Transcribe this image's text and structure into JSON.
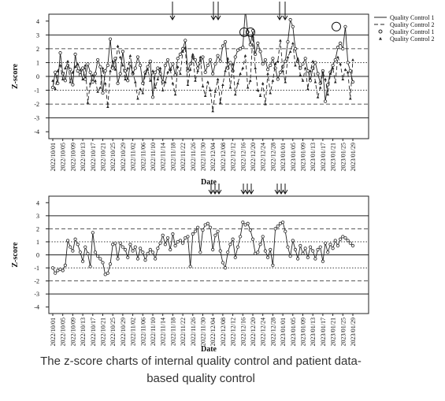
{
  "chart_data": [
    {
      "type": "line",
      "xlabel": "Date",
      "ylabel": "Z-score",
      "categories": [
        "2022/10/01",
        null,
        null,
        null,
        "2022/10/05",
        null,
        null,
        null,
        "2022/10/09",
        null,
        null,
        null,
        "2022/10/13",
        null,
        null,
        null,
        "2022/10/17",
        null,
        null,
        null,
        "2022/10/21",
        null,
        null,
        null,
        "2022/10/25",
        null,
        null,
        null,
        "2022/10/29",
        null,
        null,
        null,
        "2022/11/02",
        null,
        null,
        null,
        "2022/11/06",
        null,
        null,
        null,
        "2022/11/10",
        null,
        null,
        null,
        "2022/11/14",
        null,
        null,
        null,
        "2022/11/18",
        null,
        null,
        null,
        "2022/11/22",
        null,
        null,
        null,
        "2022/11/26",
        null,
        null,
        null,
        "2022/11/30",
        null,
        null,
        null,
        "2022/12/04",
        null,
        null,
        null,
        "2022/12/08",
        null,
        null,
        null,
        "2022/12/12",
        null,
        null,
        null,
        "2022/12/16",
        null,
        null,
        null,
        "2022/12/20",
        null,
        null,
        null,
        "2022/12/24",
        null,
        null,
        null,
        "2022/12/28",
        null,
        null,
        null,
        "2023/01/01",
        null,
        null,
        null,
        "2023/01/05",
        null,
        null,
        null,
        "2023/01/09",
        null,
        null,
        null,
        "2023/01/13",
        null,
        null,
        null,
        "2023/01/17",
        null,
        null,
        null,
        "2023/01/21",
        null,
        null,
        null,
        "2023/01/25",
        null,
        null,
        null,
        "2023/01/29"
      ],
      "series": [
        {
          "name": "Quality Control 1",
          "color": "#222222",
          "line_style": "solid",
          "marker": "circle",
          "values": [
            -0.8,
            0.3,
            -0.5,
            1.7,
            0.2,
            -0.3,
            0.8,
            0.5,
            -0.6,
            1.6,
            0.4,
            0.1,
            0.6,
            -0.2,
            0.9,
            0.3,
            -0.4,
            0.2,
            1.2,
            0.7,
            -1.2,
            0.4,
            0.8,
            2.7,
            0.6,
            1.3,
            -0.5,
            0.2,
            1.8,
            0.4,
            -0.3,
            0.9,
            0.2,
            0.6,
            1.4,
            0.8,
            -0.5,
            0.3,
            0.7,
            1.1,
            -1.5,
            0.3,
            0.6,
            0.2,
            -0.4,
            0.8,
            1.2,
            0.5,
            0.9,
            0.1,
            1.3,
            1.6,
            2.0,
            2.6,
            0.4,
            0.9,
            1.4,
            1.2,
            0.6,
            1.0,
            1.4,
            0.3,
            0.8,
            1.2,
            0.2,
            0.9,
            1.5,
            1.1,
            2.2,
            2.5,
            0.6,
            1.0,
            0.4,
            1.4,
            1.9,
            2.0,
            2.1,
            4.8,
            3.2,
            2.3,
            3.3,
            1.6,
            2.4,
            1.8,
            0.9,
            1.2,
            0.5,
            0.8,
            1.3,
            0.6,
            -0.2,
            0.3,
            0.7,
            1.1,
            2.5,
            4.1,
            3.6,
            2.0,
            1.1,
            0.6,
            0.9,
            1.3,
            0.4,
            -0.3,
            0.6,
            1.0,
            0.2,
            -0.5,
            0.4,
            -1.8,
            -0.6,
            0.3,
            0.8,
            1.2,
            2.1,
            2.4,
            2.0,
            3.6,
            1.0,
            0.4,
            -0.4
          ]
        },
        {
          "name": "Quality Control 2",
          "color": "#222222",
          "line_style": "dashed",
          "marker": "triangle",
          "values": [
            -0.3,
            -0.9,
            0.4,
            0.8,
            -0.2,
            0.6,
            1.1,
            -0.4,
            0.3,
            0.7,
            0.9,
            0.5,
            -0.2,
            0.8,
            -1.9,
            -0.5,
            0.1,
            -0.3,
            -1.1,
            -0.8,
            0.6,
            -0.5,
            -2.2,
            0.4,
            1.1,
            0.5,
            2.2,
            1.4,
            0.8,
            -0.2,
            0.6,
            1.5,
            0.3,
            -0.4,
            -1.6,
            -0.9,
            -1.2,
            0.2,
            0.5,
            -0.3,
            0.4,
            -0.8,
            -0.2,
            0.6,
            -1.0,
            -0.4,
            0.3,
            0.5,
            -0.5,
            -1.3,
            0.7,
            0.2,
            1.8,
            2.1,
            -0.6,
            0.5,
            1.6,
            -0.3,
            0.4,
            1.4,
            -0.7,
            -1.4,
            -0.4,
            -1.0,
            -2.5,
            -1.1,
            -0.2,
            -1.9,
            -0.6,
            0.4,
            1.3,
            -0.8,
            0.9,
            -1.3,
            -0.5,
            0.2,
            0.6,
            1.5,
            -0.8,
            -0.3,
            2.9,
            0.6,
            -1.0,
            -1.4,
            -0.5,
            -2.0,
            0.2,
            -1.2,
            -0.3,
            0.9,
            1.1,
            2.6,
            0.4,
            -0.4,
            1.4,
            1.8,
            2.4,
            0.8,
            1.3,
            0.1,
            -0.3,
            0.6,
            -0.9,
            0.4,
            1.1,
            -0.4,
            -1.5,
            -0.8,
            0.3,
            -0.2,
            -1.3,
            0.2,
            0.6,
            -0.4,
            1.4,
            0.9,
            -0.2,
            0.5,
            0.3,
            -1.6,
            1.2
          ]
        }
      ],
      "ylim": [
        -4.5,
        4.5
      ],
      "yticks": [
        -4,
        -3,
        -2,
        -1,
        0,
        1,
        2,
        3,
        4
      ],
      "ref_lines": {
        "solid": [
          -3,
          0,
          3
        ],
        "dashed": [
          -2,
          2
        ],
        "dotted": [
          -1,
          1
        ]
      },
      "legend": "outside-right"
    },
    {
      "type": "line",
      "xlabel": "Date",
      "ylabel": "Z-score",
      "categories": [
        "2022/10/01",
        null,
        null,
        null,
        "2022/10/05",
        null,
        null,
        null,
        "2022/10/09",
        null,
        null,
        null,
        "2022/10/13",
        null,
        null,
        null,
        "2022/10/17",
        null,
        null,
        null,
        "2022/10/21",
        null,
        null,
        null,
        "2022/10/25",
        null,
        null,
        null,
        "2022/10/29",
        null,
        null,
        null,
        "2022/11/02",
        null,
        null,
        null,
        "2022/11/06",
        null,
        null,
        null,
        "2022/11/10",
        null,
        null,
        null,
        "2022/11/14",
        null,
        null,
        null,
        "2022/11/18",
        null,
        null,
        null,
        "2022/11/22",
        null,
        null,
        null,
        "2022/11/26",
        null,
        null,
        null,
        "2022/11/30",
        null,
        null,
        null,
        "2022/12/04",
        null,
        null,
        null,
        "2022/12/08",
        null,
        null,
        null,
        "2022/12/12",
        null,
        null,
        null,
        "2022/12/16",
        null,
        null,
        null,
        "2022/12/20",
        null,
        null,
        null,
        "2022/12/24",
        null,
        null,
        null,
        "2022/12/28",
        null,
        null,
        null,
        "2023/01/01",
        null,
        null,
        null,
        "2023/01/05",
        null,
        null,
        null,
        "2023/01/09",
        null,
        null,
        null,
        "2023/01/13",
        null,
        null,
        null,
        "2023/01/17",
        null,
        null,
        null,
        "2023/01/21",
        null,
        null,
        null,
        "2023/01/25",
        null,
        null,
        null,
        "2023/01/29"
      ],
      "series": [
        {
          "color": "#222222",
          "line_style": "solid",
          "marker": "circle",
          "values": [
            -1.0,
            -1.4,
            -1.2,
            -1.1,
            -1.2,
            -0.8,
            1.1,
            0.6,
            0.3,
            1.2,
            0.8,
            0.2,
            -0.5,
            0.6,
            0.1,
            -0.9,
            1.7,
            0.2,
            -0.1,
            -0.3,
            -0.6,
            -1.5,
            -1.4,
            -0.7,
            0.8,
            0.9,
            -0.3,
            0.9,
            0.6,
            0.4,
            -0.2,
            0.8,
            0.3,
            0.6,
            -0.3,
            0.5,
            0.2,
            -0.4,
            0.1,
            0.4,
            0.2,
            -0.3,
            0.5,
            0.9,
            1.5,
            0.8,
            1.3,
            0.4,
            1.6,
            0.7,
            1.0,
            1.1,
            0.9,
            1.3,
            1.4,
            -0.9,
            1.6,
            1.8,
            2.1,
            0.2,
            1.9,
            2.3,
            2.4,
            2.1,
            0.4,
            1.5,
            1.8,
            0.3,
            -0.6,
            -1.0,
            0.2,
            0.8,
            1.2,
            -0.2,
            0.6,
            1.4,
            2.5,
            2.3,
            2.4,
            1.9,
            1.2,
            0.1,
            0.2,
            0.8,
            1.4,
            0.3,
            -0.2,
            0.4,
            -0.8,
            2.0,
            2.2,
            2.4,
            2.5,
            1.8,
            0.6,
            -0.1,
            1.1,
            0.4,
            -0.3,
            0.7,
            0.1,
            0.5,
            -0.2,
            0.6,
            0.3,
            -0.3,
            0.4,
            0.6,
            -0.5,
            0.9,
            0.2,
            0.8,
            0.5,
            1.1,
            0.7,
            1.2,
            1.4,
            1.3,
            1.1,
            0.9,
            0.7
          ]
        }
      ],
      "ylim": [
        -4.5,
        4.5
      ],
      "yticks": [
        -4,
        -3,
        -2,
        -1,
        0,
        1,
        2,
        3,
        4
      ],
      "ref_lines": {
        "solid": [
          -3,
          0,
          3
        ],
        "dashed": [
          -2,
          2
        ],
        "dotted": [
          -1,
          1
        ]
      }
    }
  ],
  "caption": "The z-score charts of internal quality control and patient data-based quality control"
}
